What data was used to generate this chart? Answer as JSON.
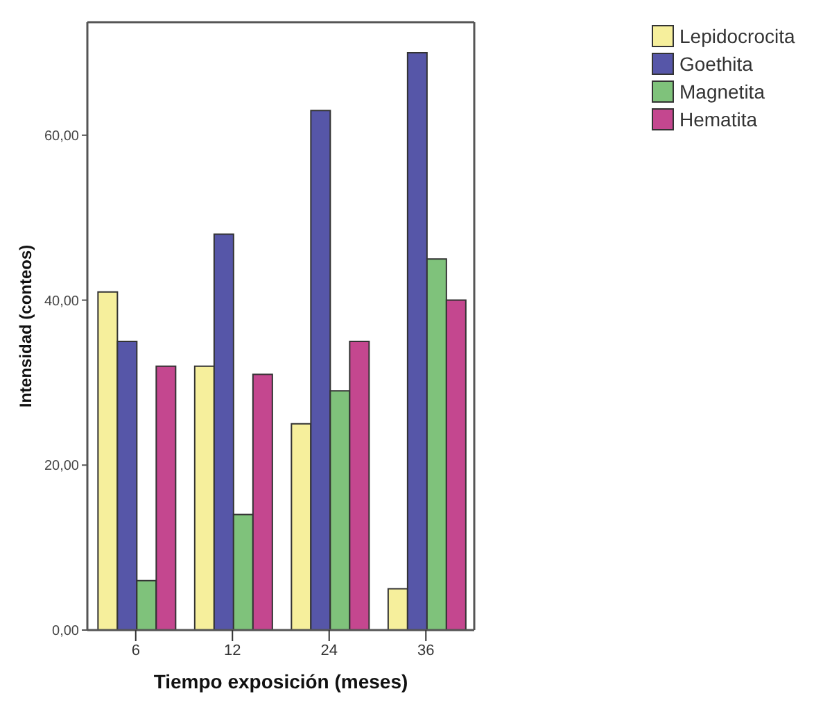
{
  "chart_data": {
    "type": "bar",
    "xlabel": "Tiempo exposición (meses)",
    "ylabel": "Intensidad (conteos)",
    "categories": [
      "6",
      "12",
      "24",
      "36"
    ],
    "series": [
      {
        "name": "Lepidocrocita",
        "color": "#f6ef9c",
        "values": [
          41,
          32,
          25,
          5
        ]
      },
      {
        "name": "Goethita",
        "color": "#5656a8",
        "values": [
          35,
          48,
          63,
          70
        ]
      },
      {
        "name": "Magnetita",
        "color": "#7fc27b",
        "values": [
          6,
          14,
          29,
          45
        ]
      },
      {
        "name": "Hematita",
        "color": "#c4478f",
        "values": [
          32,
          31,
          35,
          40
        ]
      }
    ],
    "ylim": [
      0,
      73.7
    ],
    "yticks": [
      {
        "value": 0,
        "label": "0,00"
      },
      {
        "value": 20,
        "label": "20,00"
      },
      {
        "value": 40,
        "label": "40,00"
      },
      {
        "value": 60,
        "label": "60,00"
      }
    ],
    "grid": false,
    "legend": "top right"
  }
}
